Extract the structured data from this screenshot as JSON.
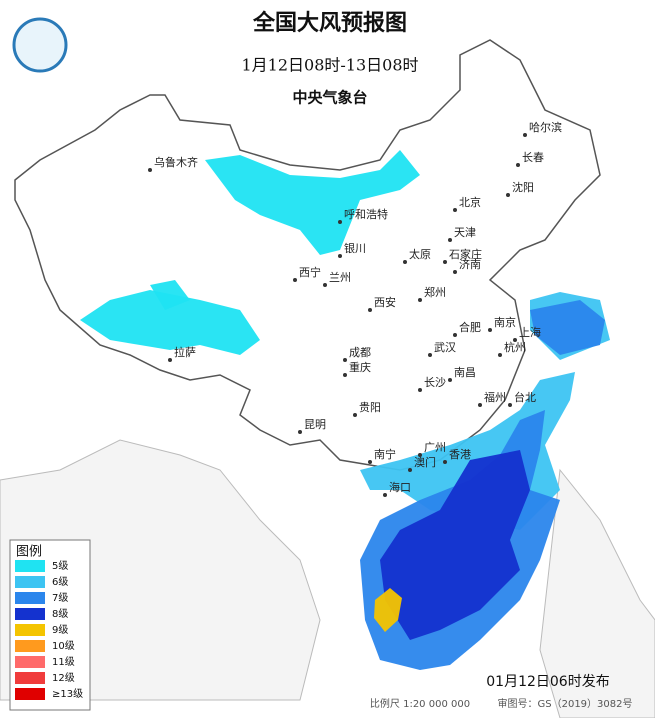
{
  "header": {
    "title": "全国大风预报图",
    "subtitle": "1月12日08时-13日08时",
    "agency": "中央气象台"
  },
  "legend": {
    "title": "图例",
    "items": [
      {
        "label": "5级",
        "color": "#1fe3f2"
      },
      {
        "label": "6级",
        "color": "#3dc4f2"
      },
      {
        "label": "7级",
        "color": "#2b86ec"
      },
      {
        "label": "8级",
        "color": "#1432cf"
      },
      {
        "label": "9级",
        "color": "#f4c400"
      },
      {
        "label": "10级",
        "color": "#ff9a1e"
      },
      {
        "label": "11级",
        "color": "#ff6a6a"
      },
      {
        "label": "12级",
        "color": "#f03c3c"
      },
      {
        "label": "≥13级",
        "color": "#e00000"
      }
    ]
  },
  "cities": [
    "乌鲁木齐",
    "哈尔滨",
    "长春",
    "沈阳",
    "呼和浩特",
    "北京",
    "天津",
    "银川",
    "太原",
    "石家庄",
    "济南",
    "西宁",
    "兰州",
    "郑州",
    "西安",
    "合肥",
    "南京",
    "上海",
    "拉萨",
    "成都",
    "武汉",
    "杭州",
    "重庆",
    "南昌",
    "长沙",
    "福州",
    "台北",
    "贵阳",
    "昆明",
    "广州",
    "香港",
    "澳门",
    "南宁",
    "海口"
  ],
  "footer": {
    "issued": "01月12日06时发布",
    "scale": "比例尺 1:20 000 000",
    "approval": "审图号：GS（2019）3082号"
  }
}
